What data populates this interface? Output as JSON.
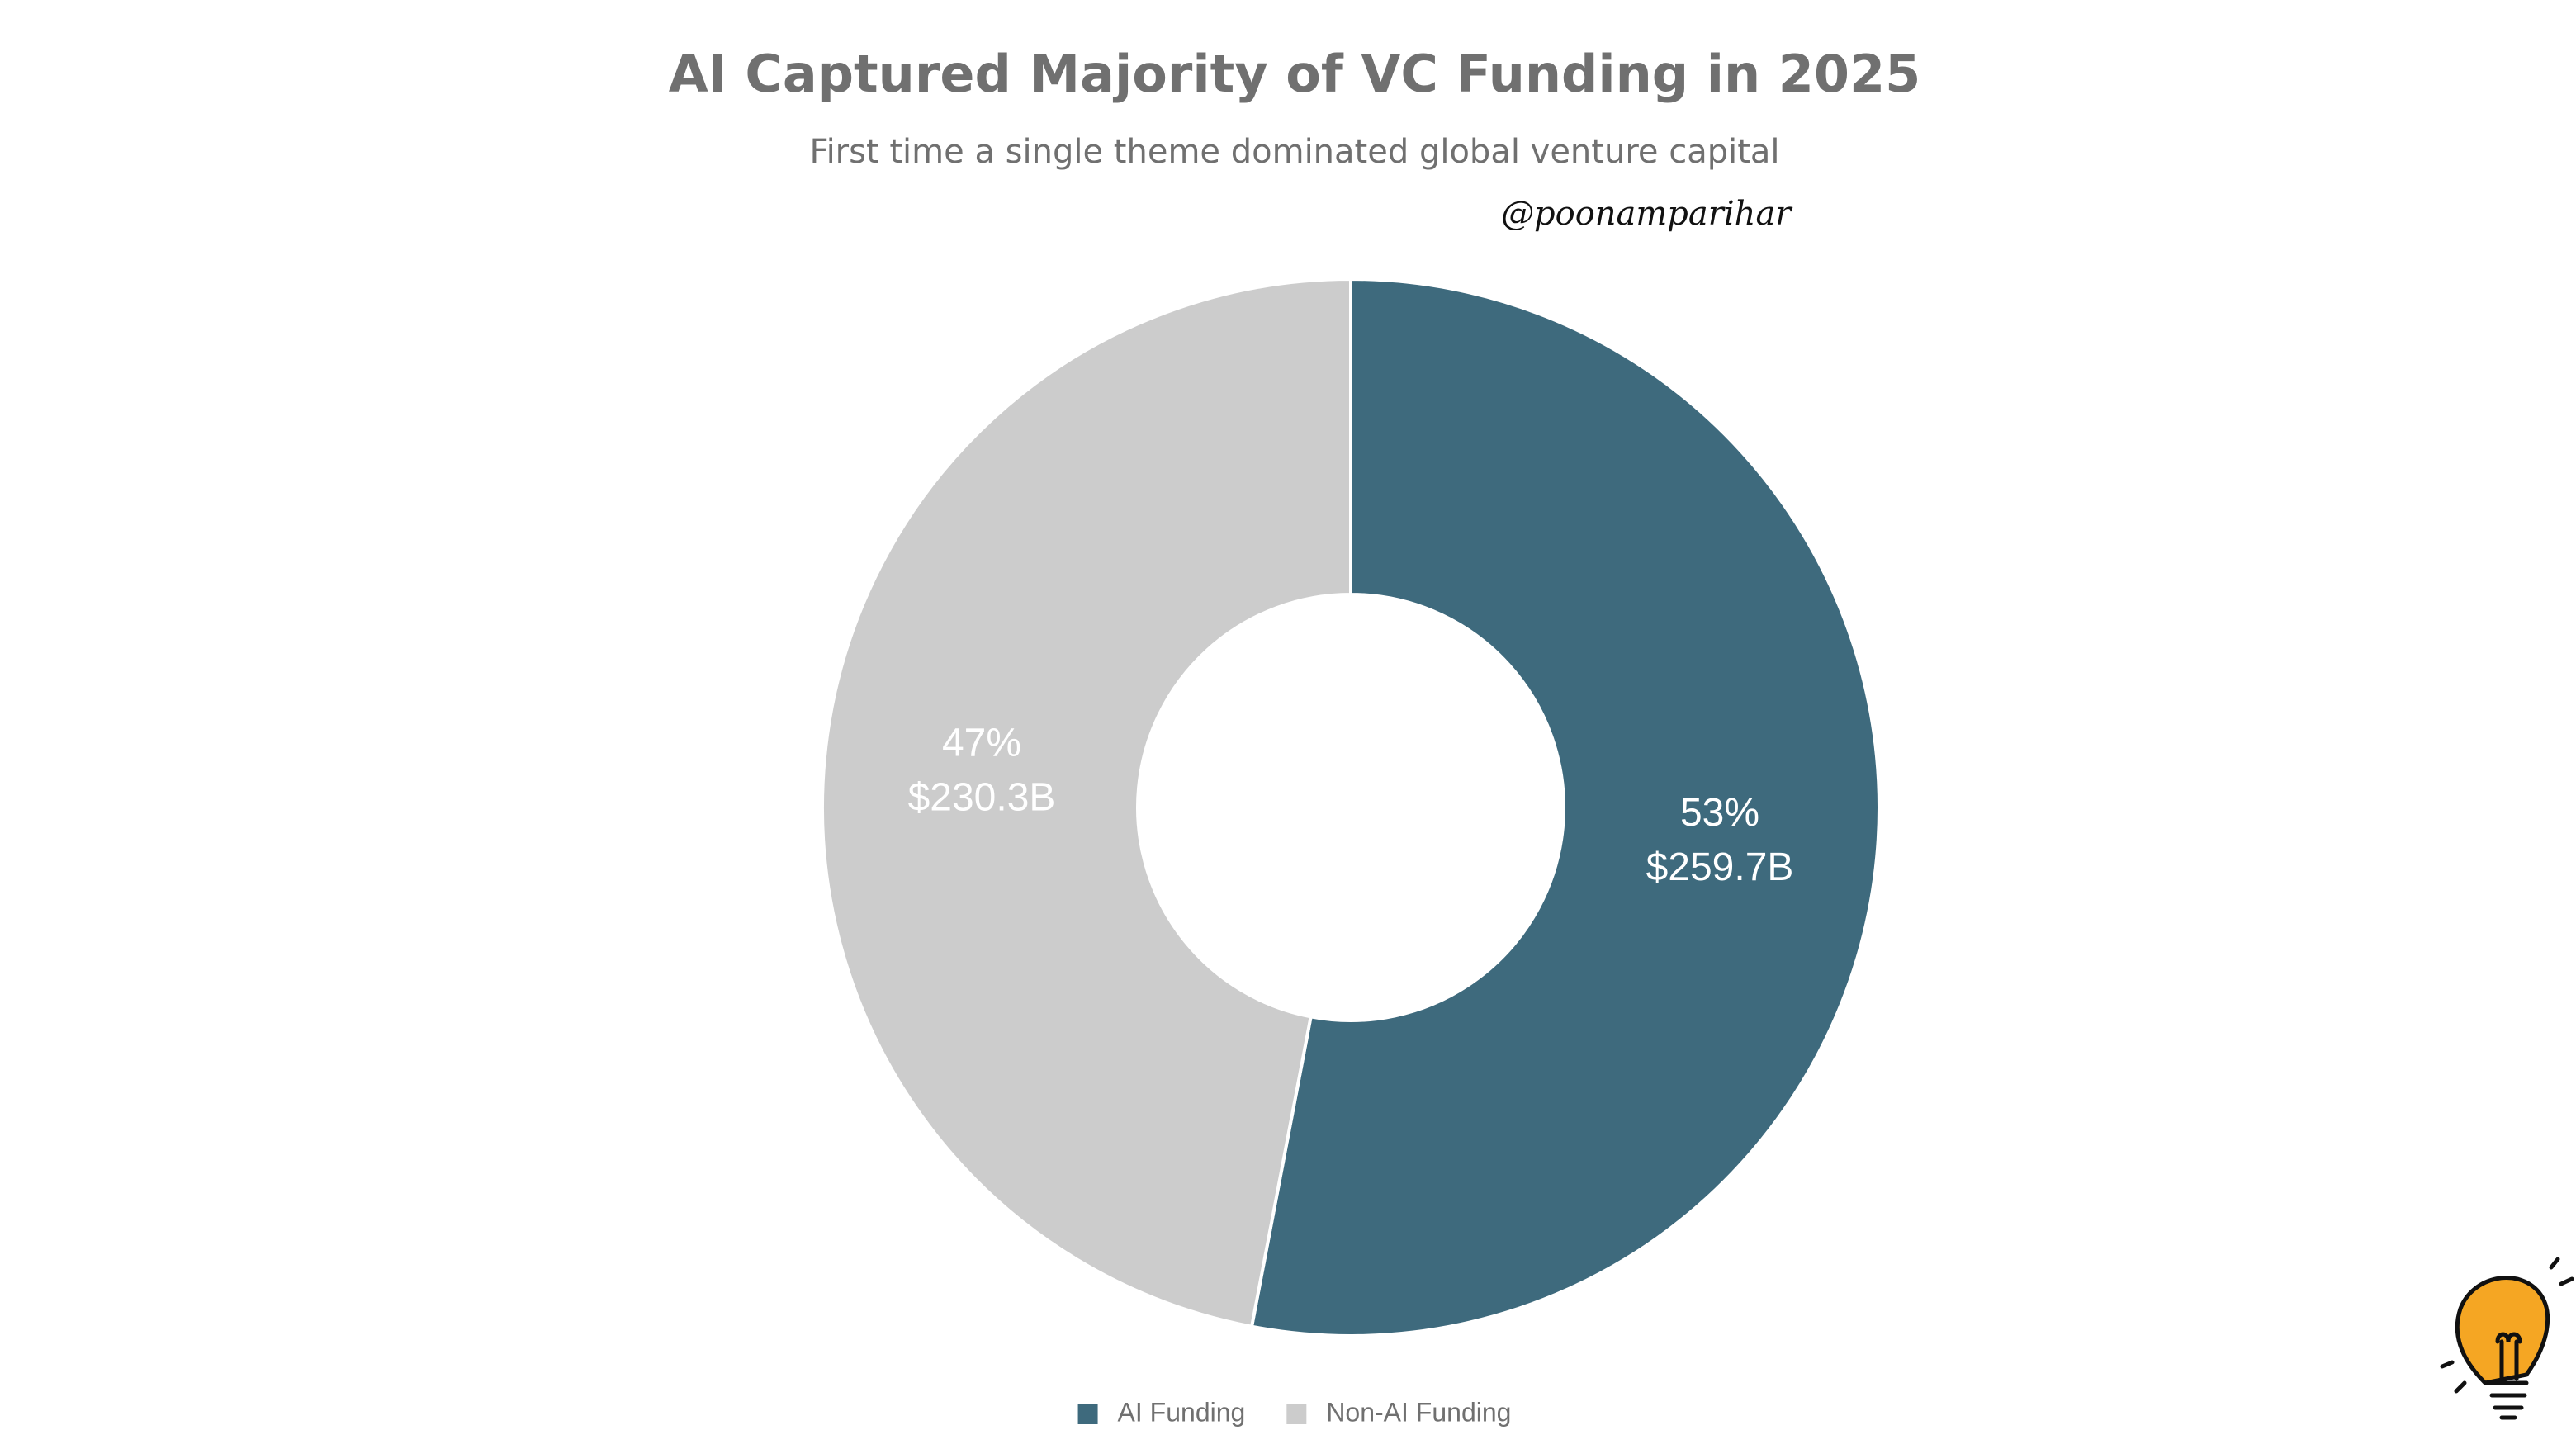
{
  "chart_data": {
    "type": "donut",
    "title": "AI Captured Majority of VC Funding in 2025",
    "subtitle": "First time a single theme dominated global venture capital",
    "watermark": "@poonamparihar",
    "categories": [
      "AI Funding",
      "Non-AI Funding"
    ],
    "values": [
      259.7,
      230.3
    ],
    "value_labels": [
      "$259.7B",
      "$230.3B"
    ],
    "percentages": [
      53,
      47
    ],
    "percentage_labels": [
      "53%",
      "47%"
    ],
    "colors": [
      "#3e6a7d",
      "#cccccc"
    ],
    "legend": "bottom"
  }
}
